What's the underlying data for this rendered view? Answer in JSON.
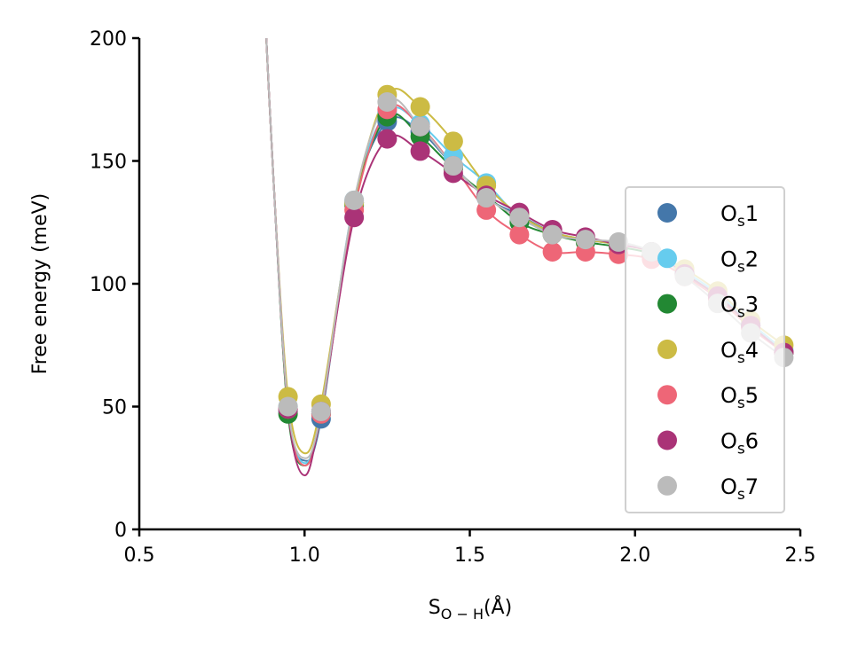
{
  "chart_data": {
    "type": "line",
    "xlabel": "S",
    "xlabel_sub": "O − H",
    "xlabel_unit": "(Å)",
    "ylabel": "Free energy (meV)",
    "xlim": [
      0.5,
      2.5
    ],
    "ylim": [
      0,
      200
    ],
    "xticks": [
      0.5,
      1.0,
      1.5,
      2.0,
      2.5
    ],
    "xtick_labels": [
      "0.5",
      "1.0",
      "1.5",
      "2.0",
      "2.5"
    ],
    "yticks": [
      0,
      50,
      100,
      150,
      200
    ],
    "ytick_labels": [
      "0",
      "50",
      "100",
      "150",
      "200"
    ],
    "grid": false,
    "legend_position": "right",
    "x": [
      0.95,
      1.05,
      1.15,
      1.25,
      1.35,
      1.45,
      1.55,
      1.65,
      1.75,
      1.85,
      1.95,
      2.05,
      2.15,
      2.25,
      2.35,
      2.45
    ],
    "series": [
      {
        "name": "Os1",
        "label_main": "O",
        "label_sub": "s",
        "label_num": "1",
        "color": "#4477aa",
        "values": [
          48,
          45,
          133,
          166,
          162,
          148,
          135,
          128,
          121,
          118,
          116,
          113,
          104,
          95,
          83,
          72
        ],
        "curve_min": 28
      },
      {
        "name": "Os2",
        "label_main": "O",
        "label_sub": "s",
        "label_num": "2",
        "color": "#66ccee",
        "values": [
          50,
          48,
          134,
          170,
          165,
          152,
          141,
          127,
          121,
          118,
          116,
          113,
          105,
          96,
          84,
          73
        ],
        "curve_min": 27
      },
      {
        "name": "Os3",
        "label_main": "O",
        "label_sub": "s",
        "label_num": "3",
        "color": "#228833",
        "values": [
          47,
          47,
          132,
          168,
          160,
          147,
          136,
          125,
          120,
          117,
          115,
          112,
          104,
          95,
          83,
          72
        ],
        "curve_min": 26
      },
      {
        "name": "Os4",
        "label_main": "O",
        "label_sub": "s",
        "label_num": "4",
        "color": "#ccbb44",
        "values": [
          54,
          51,
          133,
          177,
          172,
          158,
          140,
          128,
          121,
          118,
          116,
          113,
          106,
          97,
          85,
          75
        ],
        "curve_min": 31
      },
      {
        "name": "Os5",
        "label_main": "O",
        "label_sub": "s",
        "label_num": "5",
        "color": "#ee6677",
        "values": [
          49,
          47,
          130,
          171,
          164,
          148,
          130,
          120,
          113,
          113,
          112,
          110,
          103,
          94,
          82,
          72
        ],
        "curve_min": 26
      },
      {
        "name": "Os6",
        "label_main": "O",
        "label_sub": "s",
        "label_num": "6",
        "color": "#aa3377",
        "values": [
          49,
          48,
          127,
          159,
          154,
          145,
          136,
          129,
          122,
          119,
          116,
          113,
          104,
          95,
          83,
          72
        ],
        "curve_min": 22
      },
      {
        "name": "Os7",
        "label_main": "O",
        "label_sub": "s",
        "label_num": "7",
        "color": "#bbbbbb",
        "values": [
          50,
          48,
          134,
          174,
          164,
          148,
          135,
          127,
          120,
          118,
          117,
          113,
          103,
          92,
          80,
          70
        ],
        "curve_min": 29
      }
    ]
  }
}
